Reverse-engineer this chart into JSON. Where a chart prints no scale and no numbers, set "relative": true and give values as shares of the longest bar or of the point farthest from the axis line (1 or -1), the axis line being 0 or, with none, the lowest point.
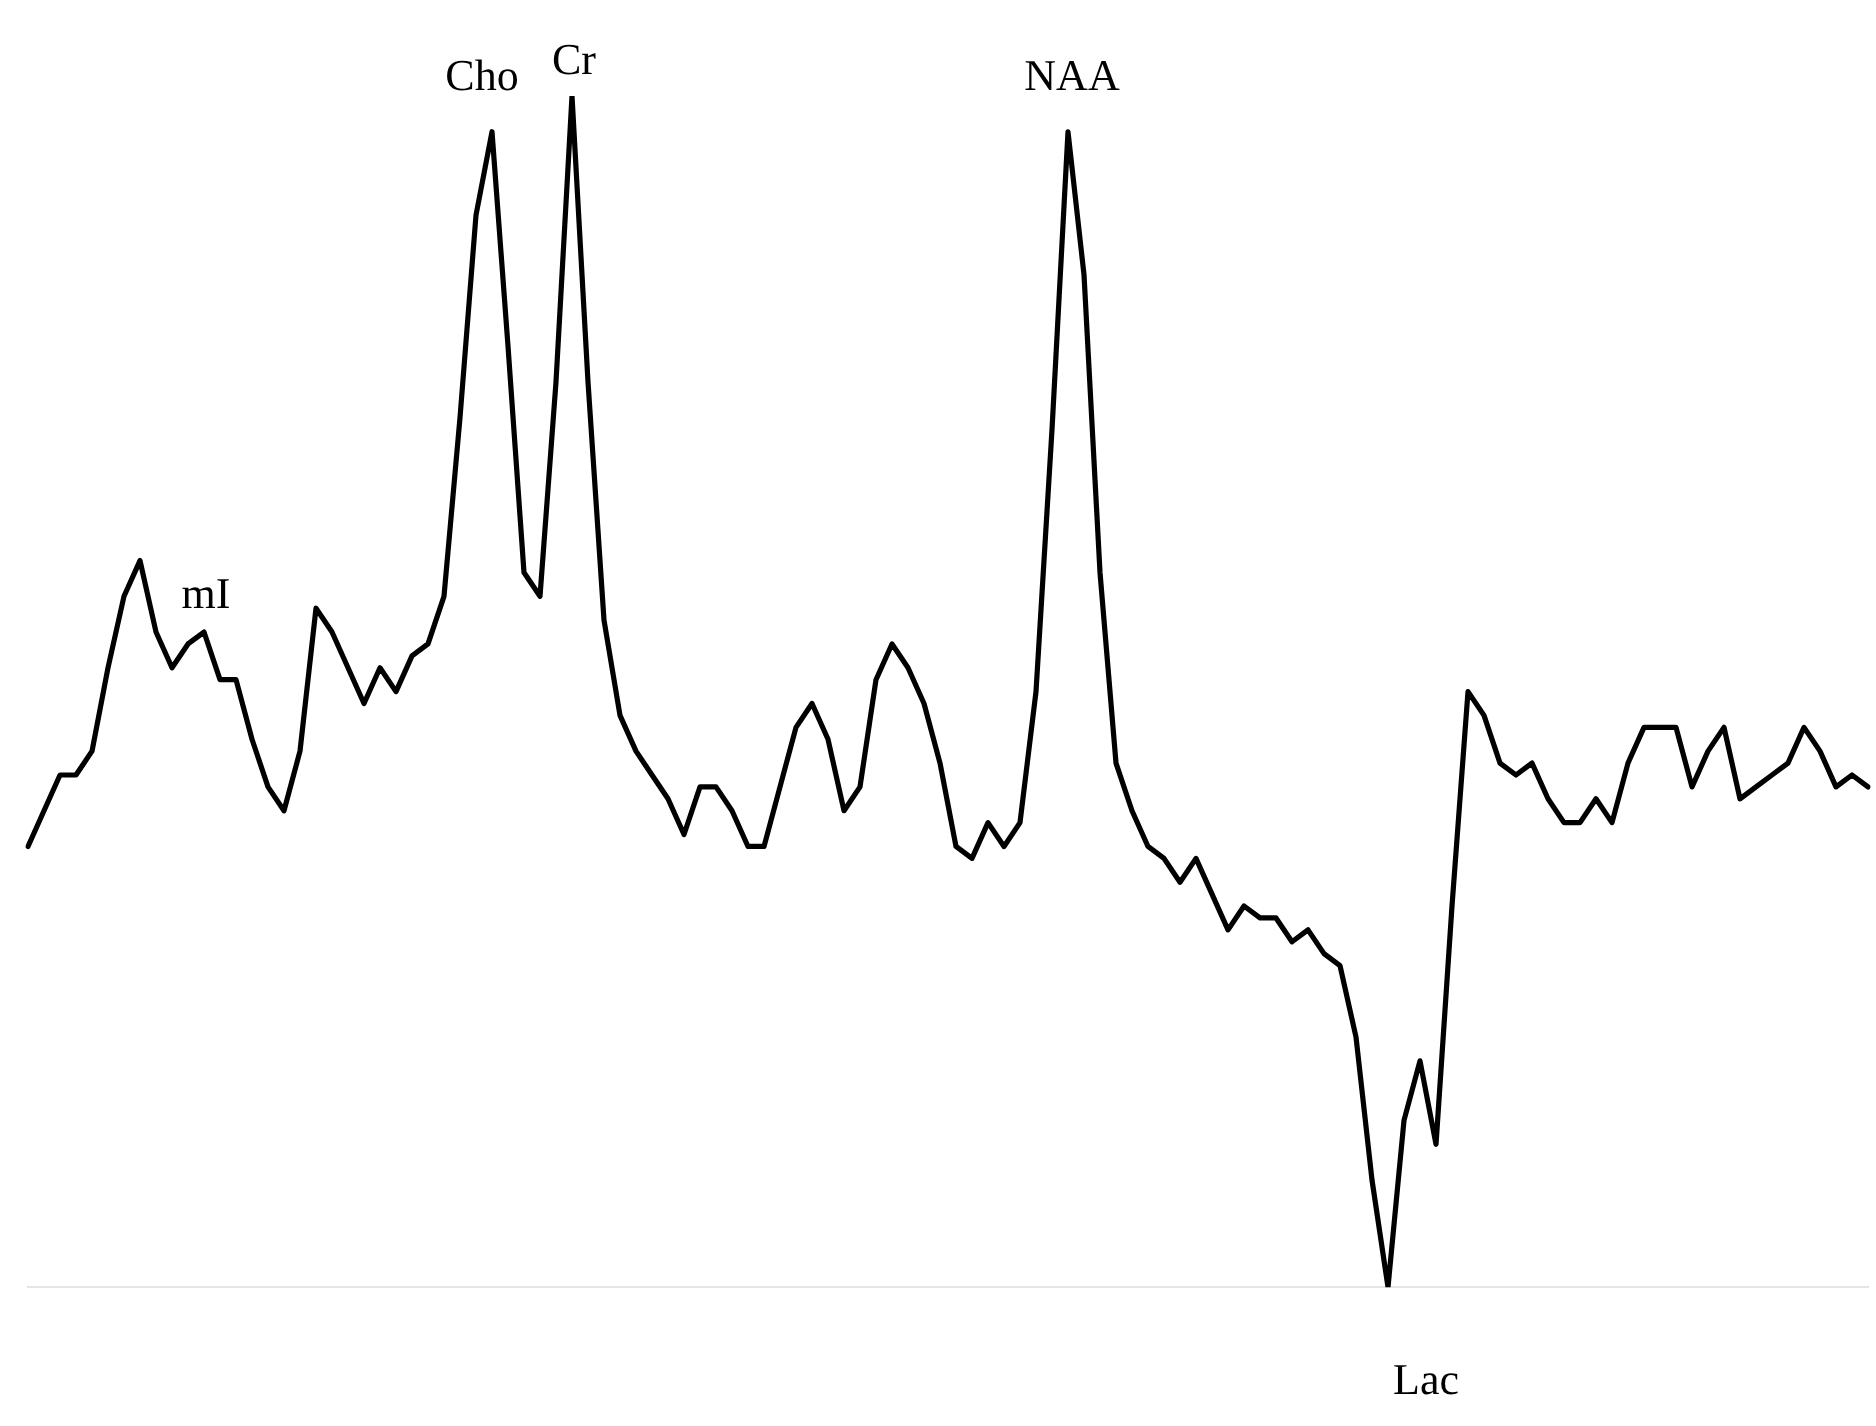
{
  "chart_data": {
    "type": "line",
    "relative": true,
    "legend": false,
    "marker": "none",
    "line_style": "solid",
    "annotations": [
      "mI",
      "Cho",
      "Cr",
      "NAA",
      "Lac"
    ],
    "categories": [
      null,
      null,
      null,
      null,
      null,
      null,
      null,
      null,
      null,
      null,
      null,
      null,
      null,
      null,
      null,
      null,
      null,
      null,
      null,
      null,
      null,
      null,
      null,
      null,
      null,
      null,
      null,
      null,
      null,
      null,
      null,
      null,
      null,
      null,
      null,
      null,
      null,
      null,
      null,
      null,
      null,
      null,
      null,
      null,
      null,
      null,
      null,
      null,
      null,
      null,
      null,
      null,
      null,
      null,
      null,
      null,
      null,
      null,
      null,
      null,
      null,
      null,
      null,
      null,
      null,
      null,
      null,
      null,
      null,
      null,
      null,
      null,
      null,
      null,
      null,
      null,
      null,
      null,
      null,
      null,
      null,
      null,
      null,
      null,
      null,
      null,
      null,
      null,
      null,
      null,
      null,
      null,
      null,
      null,
      null,
      null,
      null,
      null,
      null,
      null,
      null,
      null,
      null,
      null,
      null,
      null,
      null,
      null,
      null,
      null,
      null,
      null,
      null,
      null,
      null,
      null
    ],
    "series": [
      {
        "color": "#000000",
        "values": [
          0.37,
          0.4,
          0.43,
          0.43,
          0.45,
          0.52,
          0.58,
          0.61,
          0.55,
          0.52,
          0.54,
          0.55,
          0.51,
          0.51,
          0.46,
          0.42,
          0.4,
          0.45,
          0.57,
          0.55,
          0.52,
          0.49,
          0.52,
          0.5,
          0.53,
          0.54,
          0.58,
          0.73,
          0.9,
          0.97,
          0.79,
          0.6,
          0.58,
          0.76,
          1,
          0.76,
          0.56,
          0.48,
          0.45,
          0.43,
          0.41,
          0.38,
          0.42,
          0.42,
          0.4,
          0.37,
          0.37,
          0.42,
          0.47,
          0.49,
          0.46,
          0.4,
          0.42,
          0.51,
          0.54,
          0.52,
          0.49,
          0.44,
          0.37,
          0.36,
          0.39,
          0.37,
          0.39,
          0.5,
          0.72,
          0.97,
          0.85,
          0.6,
          0.44,
          0.4,
          0.37,
          0.36,
          0.34,
          0.36,
          0.33,
          0.3,
          0.32,
          0.31,
          0.31,
          0.29,
          0.3,
          0.28,
          0.27,
          0.21,
          0.09,
          0,
          0.14,
          0.19,
          0.12,
          0.32,
          0.5,
          0.48,
          0.44,
          0.43,
          0.44,
          0.41,
          0.39,
          0.39,
          0.41,
          0.39,
          0.44,
          0.47,
          0.47,
          0.47,
          0.42,
          0.45,
          0.47,
          0.41,
          0.42,
          0.43,
          0.44,
          0.47,
          0.45,
          0.42,
          0.43,
          0.42
        ]
      }
    ]
  }
}
